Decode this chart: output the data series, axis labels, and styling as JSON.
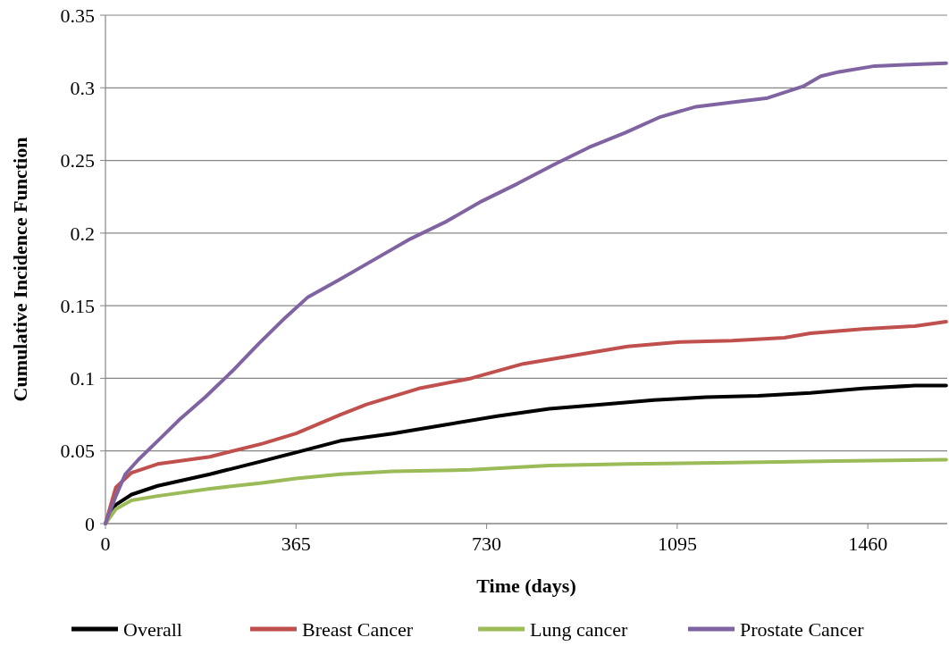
{
  "chart_data": {
    "type": "line",
    "xlabel": "Time (days)",
    "ylabel": "Cumulative Incidence Function",
    "xlim": [
      0,
      1612
    ],
    "xticks": [
      0,
      365,
      730,
      1095,
      1460
    ],
    "ylim": [
      0,
      0.35
    ],
    "yticks": [
      0,
      0.05,
      0.1,
      0.15,
      0.2,
      0.25,
      0.3,
      0.35
    ],
    "grid": "y",
    "legend": "bottom",
    "line_style": "solid",
    "marker": "none",
    "series": [
      {
        "name": "Overall",
        "color": "#000000",
        "x": [
          0,
          20,
          50,
          100,
          200,
          300,
          365,
          450,
          550,
          650,
          750,
          850,
          950,
          1050,
          1150,
          1250,
          1350,
          1450,
          1550,
          1610
        ],
        "values": [
          0,
          0.013,
          0.02,
          0.026,
          0.034,
          0.043,
          0.049,
          0.057,
          0.062,
          0.068,
          0.074,
          0.079,
          0.082,
          0.085,
          0.087,
          0.088,
          0.09,
          0.093,
          0.095,
          0.095
        ]
      },
      {
        "name": "Breast Cancer",
        "color": "#c0504d",
        "x": [
          0,
          20,
          50,
          100,
          200,
          300,
          365,
          450,
          500,
          600,
          700,
          800,
          900,
          1000,
          1100,
          1200,
          1300,
          1350,
          1450,
          1550,
          1610
        ],
        "values": [
          0,
          0.025,
          0.035,
          0.041,
          0.046,
          0.055,
          0.062,
          0.075,
          0.082,
          0.093,
          0.1,
          0.11,
          0.116,
          0.122,
          0.125,
          0.126,
          0.128,
          0.131,
          0.134,
          0.136,
          0.139
        ]
      },
      {
        "name": "Lung cancer",
        "color": "#9bbb59",
        "x": [
          0,
          20,
          50,
          100,
          200,
          300,
          365,
          450,
          550,
          700,
          850,
          1000,
          1200,
          1400,
          1610
        ],
        "values": [
          0,
          0.01,
          0.016,
          0.019,
          0.024,
          0.028,
          0.031,
          0.034,
          0.036,
          0.037,
          0.04,
          0.041,
          0.042,
          0.043,
          0.044
        ]
      },
      {
        "name": "Prostate Cancer",
        "color": "#8064a2",
        "x": [
          0,
          20,
          38,
          63,
          106,
          140,
          191,
          243,
          294,
          345,
          388,
          448,
          516,
          584,
          653,
          721,
          789,
          858,
          926,
          995,
          1063,
          1131,
          1200,
          1268,
          1336,
          1370,
          1405,
          1473,
          1541,
          1610
        ],
        "values": [
          0,
          0.019,
          0.034,
          0.044,
          0.059,
          0.071,
          0.087,
          0.105,
          0.124,
          0.142,
          0.156,
          0.168,
          0.182,
          0.196,
          0.208,
          0.222,
          0.234,
          0.247,
          0.259,
          0.269,
          0.28,
          0.287,
          0.29,
          0.293,
          0.301,
          0.308,
          0.311,
          0.315,
          0.316,
          0.317
        ]
      }
    ]
  }
}
